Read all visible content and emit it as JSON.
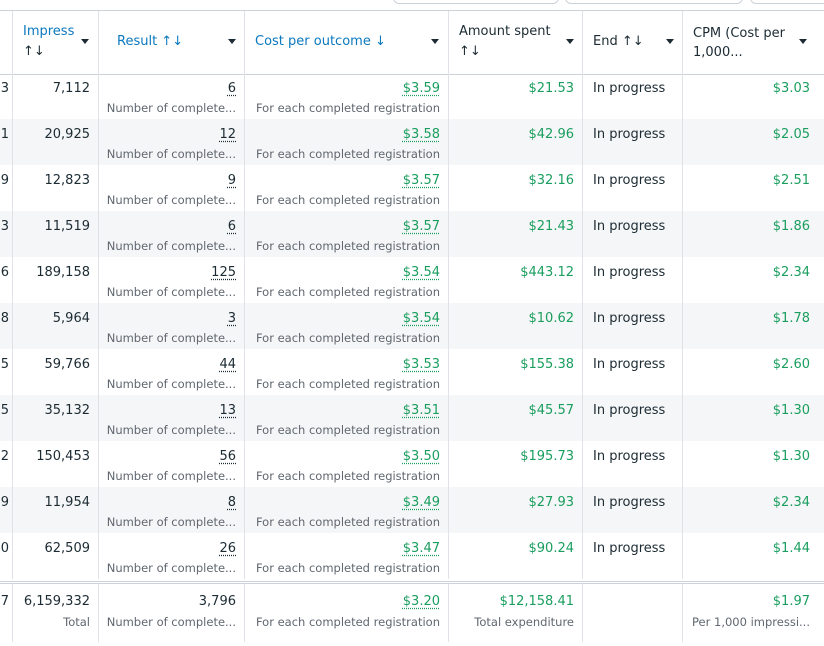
{
  "columns": [
    {
      "id": "impressions",
      "label_line1": "Impress",
      "label_line2": "↑↓"
    },
    {
      "id": "result",
      "label": "Result ↑↓"
    },
    {
      "id": "cost",
      "label": "Cost per outcome ↓"
    },
    {
      "id": "amount",
      "label_line1": "Amount spent",
      "label_line2": "↑↓"
    },
    {
      "id": "end",
      "label": "End ↑↓"
    },
    {
      "id": "cpm",
      "label_line1": "CPM (Cost per",
      "label_line2": "1,000..."
    }
  ],
  "rows": [
    {
      "edge": "3",
      "impressions": "7,112",
      "result": "6",
      "result_sub": "Number of complete...",
      "cost": "$3.59",
      "cost_sub": "For each completed registration",
      "amount": "$21.53",
      "end": "In progress",
      "cpm": "$3.03"
    },
    {
      "edge": "1",
      "impressions": "20,925",
      "result": "12",
      "result_sub": "Number of complete...",
      "cost": "$3.58",
      "cost_sub": "For each completed registration",
      "amount": "$42.96",
      "end": "In progress",
      "cpm": "$2.05"
    },
    {
      "edge": "9",
      "impressions": "12,823",
      "result": "9",
      "result_sub": "Number of complete...",
      "cost": "$3.57",
      "cost_sub": "For each completed registration",
      "amount": "$32.16",
      "end": "In progress",
      "cpm": "$2.51"
    },
    {
      "edge": "3",
      "impressions": "11,519",
      "result": "6",
      "result_sub": "Number of complete...",
      "cost": "$3.57",
      "cost_sub": "For each completed registration",
      "amount": "$21.43",
      "end": "In progress",
      "cpm": "$1.86"
    },
    {
      "edge": "6",
      "impressions": "189,158",
      "result": "125",
      "result_sub": "Number of complete...",
      "cost": "$3.54",
      "cost_sub": "For each completed registration",
      "amount": "$443.12",
      "end": "In progress",
      "cpm": "$2.34"
    },
    {
      "edge": "8",
      "impressions": "5,964",
      "result": "3",
      "result_sub": "Number of complete...",
      "cost": "$3.54",
      "cost_sub": "For each completed registration",
      "amount": "$10.62",
      "end": "In progress",
      "cpm": "$1.78"
    },
    {
      "edge": "5",
      "impressions": "59,766",
      "result": "44",
      "result_sub": "Number of complete...",
      "cost": "$3.53",
      "cost_sub": "For each completed registration",
      "amount": "$155.38",
      "end": "In progress",
      "cpm": "$2.60"
    },
    {
      "edge": "5",
      "impressions": "35,132",
      "result": "13",
      "result_sub": "Number of complete...",
      "cost": "$3.51",
      "cost_sub": "For each completed registration",
      "amount": "$45.57",
      "end": "In progress",
      "cpm": "$1.30"
    },
    {
      "edge": "2",
      "impressions": "150,453",
      "result": "56",
      "result_sub": "Number of complete...",
      "cost": "$3.50",
      "cost_sub": "For each completed registration",
      "amount": "$195.73",
      "end": "In progress",
      "cpm": "$1.30"
    },
    {
      "edge": "9",
      "impressions": "11,954",
      "result": "8",
      "result_sub": "Number of complete...",
      "cost": "$3.49",
      "cost_sub": "For each completed registration",
      "amount": "$27.93",
      "end": "In progress",
      "cpm": "$2.34"
    },
    {
      "edge": "0",
      "impressions": "62,509",
      "result": "26",
      "result_sub": "Number of complete...",
      "cost": "$3.47",
      "cost_sub": "For each completed registration",
      "amount": "$90.24",
      "end": "In progress",
      "cpm": "$1.44"
    }
  ],
  "totals": {
    "edge": "7",
    "impressions": "6,159,332",
    "impressions_sub": "Total",
    "result": "3,796",
    "result_sub": "Number of complete...",
    "cost": "$3.20",
    "cost_sub": "For each completed registration",
    "amount": "$12,158.41",
    "amount_sub": "Total expenditure",
    "cpm": "$1.97",
    "cpm_sub": "Per 1,000 impressi..."
  },
  "colors": {
    "link_blue": "#0a78be",
    "money_green": "#1a9e5f",
    "row_alt": "#f5f6f7"
  }
}
